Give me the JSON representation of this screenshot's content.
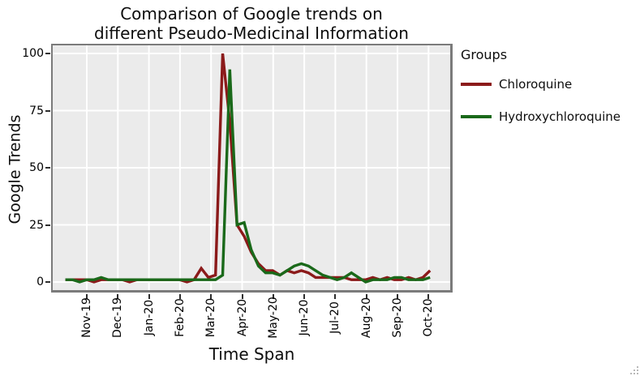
{
  "title": {
    "line1": "Comparison of Google trends on",
    "line2": "different Pseudo-Medicinal Information"
  },
  "chart_data": {
    "type": "line",
    "title": "Comparison of Google trends on different Pseudo-Medicinal Information",
    "xlabel": "Time Span",
    "ylabel": "Google Trends",
    "ylim": [
      0,
      100
    ],
    "y_ticks": [
      0,
      25,
      50,
      75,
      100
    ],
    "x_tick_labels": [
      "Nov-19",
      "Dec-19",
      "Jan-20",
      "Feb-20",
      "Mar-20",
      "Apr-20",
      "May-20",
      "Jun-20",
      "Jul-20",
      "Aug-20",
      "Sep-20",
      "Oct-20"
    ],
    "x_resolution": "weekly",
    "n_points": 52,
    "grid": "major",
    "panel_background": "#EBEBEB",
    "gridline_color": "#FFFFFF",
    "legend_position": "right",
    "legend_title": "Groups",
    "series": [
      {
        "name": "Chloroquine",
        "color": "#8B1A1A",
        "values": [
          1,
          1,
          1,
          1,
          0,
          1,
          1,
          1,
          1,
          0,
          1,
          1,
          1,
          1,
          1,
          1,
          1,
          0,
          1,
          6,
          2,
          3,
          100,
          70,
          25,
          20,
          13,
          8,
          5,
          5,
          3,
          5,
          4,
          5,
          4,
          2,
          2,
          2,
          2,
          2,
          1,
          1,
          1,
          2,
          1,
          2,
          1,
          1,
          2,
          1,
          2,
          5
        ]
      },
      {
        "name": "Hydroxychloroquine",
        "color": "#1A691A",
        "values": [
          1,
          1,
          0,
          1,
          1,
          2,
          1,
          1,
          1,
          1,
          1,
          1,
          1,
          1,
          1,
          1,
          1,
          1,
          1,
          1,
          1,
          1,
          3,
          93,
          25,
          26,
          14,
          7,
          4,
          4,
          3,
          5,
          7,
          8,
          7,
          5,
          3,
          2,
          1,
          2,
          4,
          2,
          0,
          1,
          1,
          1,
          2,
          2,
          1,
          1,
          1,
          2
        ]
      }
    ]
  }
}
